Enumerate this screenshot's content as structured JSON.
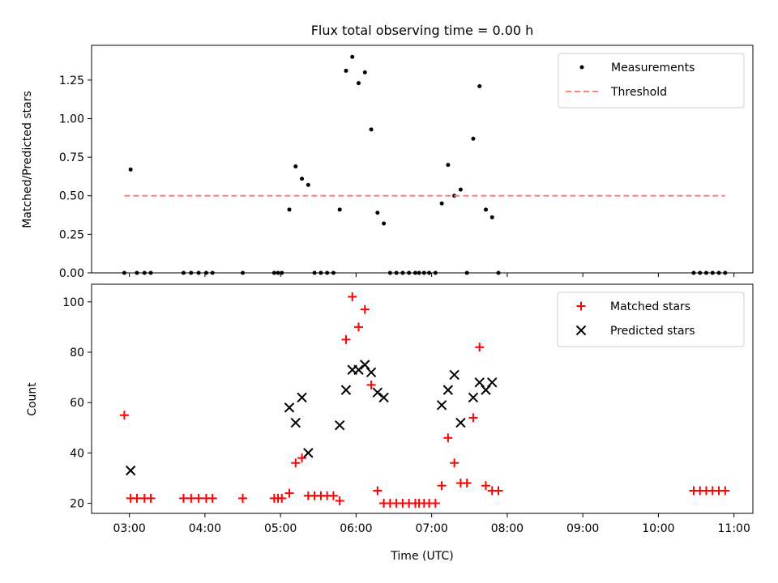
{
  "chart_data": [
    {
      "type": "scatter",
      "title": "Flux total observing time = 0.00 h",
      "xlabel": "",
      "ylabel": "Matched/Predicted stars",
      "xlim": [
        "02:30",
        "11:15"
      ],
      "ylim": [
        0,
        1.475
      ],
      "yticks": [
        0.0,
        0.25,
        0.5,
        0.75,
        1.0,
        1.25
      ],
      "ytick_labels": [
        "0.00",
        "0.25",
        "0.50",
        "0.75",
        "1.00",
        "1.25"
      ],
      "x_tick_labels_visible": false,
      "legend_position": "upper right",
      "series": [
        {
          "name": "Measurements",
          "kind": "dot",
          "color": "#000000",
          "points": [
            [
              "02:56",
              0
            ],
            [
              "03:01",
              0.67
            ],
            [
              "03:06",
              0
            ],
            [
              "03:12",
              0
            ],
            [
              "03:17",
              0
            ],
            [
              "03:43",
              0
            ],
            [
              "03:49",
              0
            ],
            [
              "03:55",
              0
            ],
            [
              "04:01",
              0
            ],
            [
              "04:06",
              0
            ],
            [
              "04:30",
              0
            ],
            [
              "04:55",
              0
            ],
            [
              "04:58",
              0
            ],
            [
              "05:01",
              0
            ],
            [
              "05:07",
              0.41
            ],
            [
              "05:12",
              0.69
            ],
            [
              "05:17",
              0.61
            ],
            [
              "05:22",
              0.57
            ],
            [
              "05:27",
              0
            ],
            [
              "05:32",
              0
            ],
            [
              "05:37",
              0
            ],
            [
              "05:42",
              0
            ],
            [
              "05:47",
              0.41
            ],
            [
              "05:52",
              1.31
            ],
            [
              "05:57",
              1.4
            ],
            [
              "06:02",
              1.23
            ],
            [
              "06:07",
              1.3
            ],
            [
              "06:12",
              0.93
            ],
            [
              "06:17",
              0.39
            ],
            [
              "06:22",
              0.32
            ],
            [
              "06:27",
              0
            ],
            [
              "06:32",
              0
            ],
            [
              "06:37",
              0
            ],
            [
              "06:42",
              0
            ],
            [
              "06:47",
              0
            ],
            [
              "06:50",
              0
            ],
            [
              "06:54",
              0
            ],
            [
              "06:58",
              0
            ],
            [
              "07:03",
              0
            ],
            [
              "07:08",
              0.45
            ],
            [
              "07:13",
              0.7
            ],
            [
              "07:18",
              0.5
            ],
            [
              "07:23",
              0.54
            ],
            [
              "07:28",
              0
            ],
            [
              "07:33",
              0.87
            ],
            [
              "07:38",
              1.21
            ],
            [
              "07:43",
              0.41
            ],
            [
              "07:48",
              0.36
            ],
            [
              "07:53",
              0
            ],
            [
              "10:28",
              0
            ],
            [
              "10:33",
              0
            ],
            [
              "10:38",
              0
            ],
            [
              "10:43",
              0
            ],
            [
              "10:48",
              0
            ],
            [
              "10:53",
              0
            ]
          ]
        },
        {
          "name": "Threshold",
          "kind": "dashed-line",
          "color": "#ff7f7f",
          "points": [
            [
              "02:56",
              0.5
            ],
            [
              "10:53",
              0.5
            ]
          ]
        }
      ]
    },
    {
      "type": "scatter",
      "title": "",
      "xlabel": "Time (UTC)",
      "ylabel": "Count",
      "xlim": [
        "02:30",
        "11:15"
      ],
      "ylim": [
        16,
        107
      ],
      "yticks": [
        20,
        40,
        60,
        80,
        100
      ],
      "ytick_labels": [
        "20",
        "40",
        "60",
        "80",
        "100"
      ],
      "xticks": [
        "03:00",
        "04:00",
        "05:00",
        "06:00",
        "07:00",
        "08:00",
        "09:00",
        "10:00",
        "11:00"
      ],
      "xtick_labels": [
        "03:00",
        "04:00",
        "05:00",
        "06:00",
        "07:00",
        "08:00",
        "09:00",
        "10:00",
        "11:00"
      ],
      "legend_position": "upper right",
      "series": [
        {
          "name": "Matched stars",
          "kind": "plus",
          "color": "#ff0000",
          "points": [
            [
              "02:56",
              55
            ],
            [
              "03:01",
              22
            ],
            [
              "03:06",
              22
            ],
            [
              "03:12",
              22
            ],
            [
              "03:17",
              22
            ],
            [
              "03:43",
              22
            ],
            [
              "03:49",
              22
            ],
            [
              "03:55",
              22
            ],
            [
              "04:01",
              22
            ],
            [
              "04:06",
              22
            ],
            [
              "04:30",
              22
            ],
            [
              "04:55",
              22
            ],
            [
              "04:58",
              22
            ],
            [
              "05:01",
              22
            ],
            [
              "05:07",
              24
            ],
            [
              "05:12",
              36
            ],
            [
              "05:17",
              38
            ],
            [
              "05:22",
              23
            ],
            [
              "05:27",
              23
            ],
            [
              "05:32",
              23
            ],
            [
              "05:37",
              23
            ],
            [
              "05:42",
              23
            ],
            [
              "05:47",
              21
            ],
            [
              "05:52",
              85
            ],
            [
              "05:57",
              102
            ],
            [
              "06:02",
              90
            ],
            [
              "06:07",
              97
            ],
            [
              "06:12",
              67
            ],
            [
              "06:17",
              25
            ],
            [
              "06:22",
              20
            ],
            [
              "06:27",
              20
            ],
            [
              "06:32",
              20
            ],
            [
              "06:37",
              20
            ],
            [
              "06:42",
              20
            ],
            [
              "06:47",
              20
            ],
            [
              "06:50",
              20
            ],
            [
              "06:54",
              20
            ],
            [
              "06:58",
              20
            ],
            [
              "07:03",
              20
            ],
            [
              "07:08",
              27
            ],
            [
              "07:13",
              46
            ],
            [
              "07:18",
              36
            ],
            [
              "07:23",
              28
            ],
            [
              "07:28",
              28
            ],
            [
              "07:33",
              54
            ],
            [
              "07:38",
              82
            ],
            [
              "07:43",
              27
            ],
            [
              "07:48",
              25
            ],
            [
              "07:53",
              25
            ],
            [
              "10:28",
              25
            ],
            [
              "10:33",
              25
            ],
            [
              "10:38",
              25
            ],
            [
              "10:43",
              25
            ],
            [
              "10:48",
              25
            ],
            [
              "10:53",
              25
            ]
          ]
        },
        {
          "name": "Predicted stars",
          "kind": "x",
          "color": "#000000",
          "points": [
            [
              "03:01",
              33
            ],
            [
              "05:07",
              58
            ],
            [
              "05:12",
              52
            ],
            [
              "05:17",
              62
            ],
            [
              "05:22",
              40
            ],
            [
              "05:47",
              51
            ],
            [
              "05:52",
              65
            ],
            [
              "05:57",
              73
            ],
            [
              "06:02",
              73
            ],
            [
              "06:07",
              75
            ],
            [
              "06:12",
              72
            ],
            [
              "06:17",
              64
            ],
            [
              "06:22",
              62
            ],
            [
              "07:08",
              59
            ],
            [
              "07:13",
              65
            ],
            [
              "07:18",
              71
            ],
            [
              "07:23",
              52
            ],
            [
              "07:33",
              62
            ],
            [
              "07:38",
              68
            ],
            [
              "07:43",
              65
            ],
            [
              "07:48",
              68
            ]
          ]
        }
      ]
    }
  ]
}
